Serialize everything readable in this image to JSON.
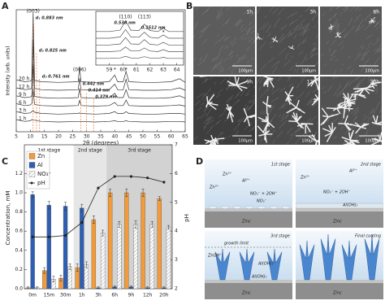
{
  "panel_labels": [
    "A",
    "B",
    "C",
    "D"
  ],
  "chart_data": [
    {
      "type": "line",
      "x_label": "2θ (degrees)",
      "y_label": "Intensity (arb. units)",
      "x": [
        5,
        8,
        10,
        10.5,
        11,
        11.5,
        14,
        20,
        27,
        27.5,
        28,
        33,
        38,
        40,
        41,
        43,
        44,
        45,
        50,
        55,
        60,
        63,
        65
      ],
      "xlim": [
        5,
        65
      ],
      "xticks": [
        5,
        10,
        15,
        20,
        25,
        30,
        35,
        40,
        45,
        50,
        55,
        60,
        65
      ],
      "ylim": [
        0,
        10
      ],
      "color": "#333333",
      "d_color": "#e0661e",
      "d_lines": true,
      "series": [
        {
          "name": "1 h",
          "values": [
            1.0,
            0.85,
            0.9,
            1.0,
            0.95,
            0.95,
            0.85,
            0.8,
            0.85,
            0.85,
            0.85,
            0.8,
            0.85,
            0.9,
            0.85,
            0.85,
            0.9,
            0.85,
            0.8,
            0.8,
            0.85,
            0.85,
            0.8
          ]
        },
        {
          "name": "3 h",
          "values": [
            1.65,
            1.5,
            1.55,
            1.65,
            1.75,
            1.6,
            1.5,
            1.45,
            1.5,
            1.55,
            1.5,
            1.45,
            1.5,
            1.65,
            1.5,
            1.5,
            1.65,
            1.5,
            1.45,
            1.45,
            1.5,
            1.5,
            1.45
          ]
        },
        {
          "name": "6 h",
          "values": [
            2.3,
            2.15,
            2.2,
            2.3,
            3.5,
            2.25,
            2.15,
            2.1,
            2.15,
            2.6,
            2.15,
            2.1,
            2.15,
            2.4,
            2.15,
            2.15,
            2.6,
            2.15,
            2.1,
            2.1,
            2.15,
            2.2,
            2.1
          ]
        },
        {
          "name": "9 h",
          "values": [
            2.95,
            2.8,
            2.85,
            2.95,
            5.55,
            2.9,
            2.8,
            2.75,
            2.8,
            3.55,
            2.8,
            2.75,
            2.8,
            3.15,
            2.8,
            2.8,
            3.45,
            2.8,
            2.75,
            2.75,
            2.8,
            2.95,
            2.75
          ]
        },
        {
          "name": "12 h",
          "values": [
            3.6,
            3.45,
            3.5,
            3.6,
            7.6,
            3.55,
            3.45,
            3.4,
            3.45,
            4.4,
            3.45,
            3.4,
            3.45,
            3.9,
            3.45,
            3.45,
            4.3,
            3.45,
            3.4,
            3.4,
            3.45,
            3.6,
            3.4
          ]
        },
        {
          "name": "20 h",
          "values": [
            4.25,
            4.1,
            4.15,
            4.25,
            9.75,
            4.2,
            4.1,
            4.05,
            4.1,
            5.35,
            4.1,
            4.05,
            4.1,
            4.65,
            4.1,
            4.1,
            4.95,
            4.1,
            4.05,
            4.05,
            4.1,
            4.35,
            4.05
          ]
        }
      ],
      "peak_labels": [
        {
          "text": "(003)",
          "x": 11
        },
        {
          "text": "(006)",
          "x": 27.5
        },
        {
          "text": "*",
          "x": 40
        },
        {
          "text": "*",
          "x": 44
        }
      ],
      "d_spacings": [
        {
          "text": "d₁ 0.883 nm",
          "x": 11
        },
        {
          "text": "d₂ 0.825 nm",
          "x": 12.2
        },
        {
          "text": "d₃ 0.761 nm",
          "x": 13.3
        },
        {
          "text": "0.442 nm",
          "x": 28
        },
        {
          "text": "0.414 nm",
          "x": 30
        },
        {
          "text": "0.379 nm",
          "x": 32.5
        }
      ]
    },
    {
      "type": "line",
      "x": [
        58,
        59,
        59.8,
        60.2,
        60.6,
        61.2,
        61.6,
        62,
        62.6,
        63,
        63.4,
        64,
        64.5
      ],
      "xlim": [
        58,
        64.5
      ],
      "xticks": [
        59,
        60,
        61,
        62,
        63,
        64
      ],
      "ylim": [
        0,
        8
      ],
      "color": "#555555",
      "d_color": "#e0661e",
      "d_lines": false,
      "series": [
        {
          "values": [
            1,
            1,
            1.05,
            1.3,
            1.05,
            1.05,
            1.25,
            1.05,
            1,
            1.15,
            1,
            1,
            1
          ]
        },
        {
          "values": [
            2,
            2,
            2.1,
            2.7,
            2.1,
            2.1,
            2.55,
            2.1,
            2,
            2.3,
            2,
            2,
            2
          ]
        },
        {
          "values": [
            3,
            3,
            3.15,
            4.1,
            3.15,
            3.1,
            3.8,
            3.1,
            3,
            3.4,
            3,
            3,
            3
          ]
        },
        {
          "values": [
            4,
            4,
            4.2,
            5.3,
            4.2,
            4.15,
            4.9,
            4.15,
            4,
            4.5,
            4,
            4,
            4
          ]
        },
        {
          "values": [
            5,
            5,
            5.2,
            6.6,
            5.2,
            5.15,
            6.1,
            5.15,
            5,
            5.5,
            5,
            5,
            5
          ]
        }
      ],
      "peak_labels": [
        {
          "text": "(110)",
          "x": 60.2
        },
        {
          "text": "(113)",
          "x": 61.6
        },
        {
          "text": "*",
          "x": 63
        }
      ],
      "d_spacings": [
        {
          "text": "0.538 nm",
          "x": 60.2
        },
        {
          "text": "0.1512 nm",
          "x": 61.6
        }
      ]
    },
    {
      "type": "bar",
      "y_label": "Concentration, mM",
      "y2_label": "pH",
      "categories": [
        "0m",
        "15m",
        "30m",
        "1h",
        "3h",
        "6h",
        "9h",
        "12h",
        "20h"
      ],
      "stages": [
        "1st stage",
        "2nd stage",
        "3rd stage"
      ],
      "ylim": [
        0,
        1.5
      ],
      "yticks": [
        {
          "value": 0,
          "label": "0.0"
        },
        {
          "value": 0.2,
          "label": "0.2"
        },
        {
          "value": 0.4,
          "label": "0.4"
        },
        {
          "value": 0.6,
          "label": "0.6"
        },
        {
          "value": 0.8,
          "label": "0.8"
        },
        {
          "value": 1,
          "label": "1.0"
        },
        {
          "value": 1.2,
          "label": "1.2"
        }
      ],
      "y2lim": [
        2,
        7
      ],
      "y2ticks": [
        2,
        3,
        4,
        5,
        6,
        7
      ],
      "series": [
        {
          "name": "Zn",
          "color": "#f39a3a",
          "values": [
            0.01,
            0.19,
            0.11,
            0.22,
            0.72,
            1.0,
            1.0,
            1.0,
            0.94
          ],
          "errors": [
            0.01,
            0.03,
            0.03,
            0.04,
            0.04,
            0.04,
            0.04,
            0.04,
            0.02
          ]
        },
        {
          "name": "Al",
          "color": "#2f5fb3",
          "values": [
            0.98,
            0.87,
            0.86,
            0.84,
            0.01,
            0.02,
            0.02,
            0.01,
            0.01
          ],
          "errors": [
            0.03,
            0.04,
            0.04,
            0.04,
            0.01,
            0.01,
            0.01,
            0.01,
            0.01
          ]
        },
        {
          "name": "NO₃⁻",
          "color": "#ffffff",
          "pattern": "hatch",
          "values": [
            0.01,
            0.1,
            0.23,
            0.25,
            0.58,
            0.67,
            0.67,
            0.67,
            0.64
          ],
          "errors": [
            0.01,
            0.03,
            0.03,
            0.03,
            0.03,
            0.03,
            0.04,
            0.03,
            0.02
          ]
        },
        {
          "name": "pH",
          "type": "line",
          "axis": "y2",
          "color": "#222222",
          "values": [
            3.8,
            3.8,
            3.85,
            4.3,
            5.5,
            5.9,
            5.9,
            5.85,
            5.7
          ]
        }
      ]
    }
  ],
  "sem": {
    "images": [
      {
        "label": "1h",
        "scale": "100μm"
      },
      {
        "label": "3h",
        "scale": "100μm"
      },
      {
        "label": "6h",
        "scale": "100μm"
      },
      {
        "label": "9h",
        "scale": "100μm"
      },
      {
        "label": "12h",
        "scale": "100μm"
      },
      {
        "label": "20h",
        "scale": "100μm"
      }
    ]
  },
  "diagram": {
    "panels": [
      {
        "title": "1st stage",
        "labels": [
          "Zn²⁺",
          "Zn²⁺",
          "Al³⁺",
          "NO₃⁻ + 2OH⁻",
          "NO₂⁻",
          "Zinc"
        ]
      },
      {
        "title": "2nd stage",
        "labels": [
          "Al³⁺",
          "Zn²⁺",
          "NO₃⁻ + 2OH⁻",
          "Al(OH)₃",
          "Zinc"
        ]
      },
      {
        "title": "3rd stage",
        "labels": [
          "growth limit",
          "ZnOH⁺",
          "Al(OH)₄⁻",
          "Al(OH)₃",
          "Zinc"
        ]
      },
      {
        "title": "Final coating",
        "labels": [
          "Zinc"
        ]
      }
    ]
  }
}
